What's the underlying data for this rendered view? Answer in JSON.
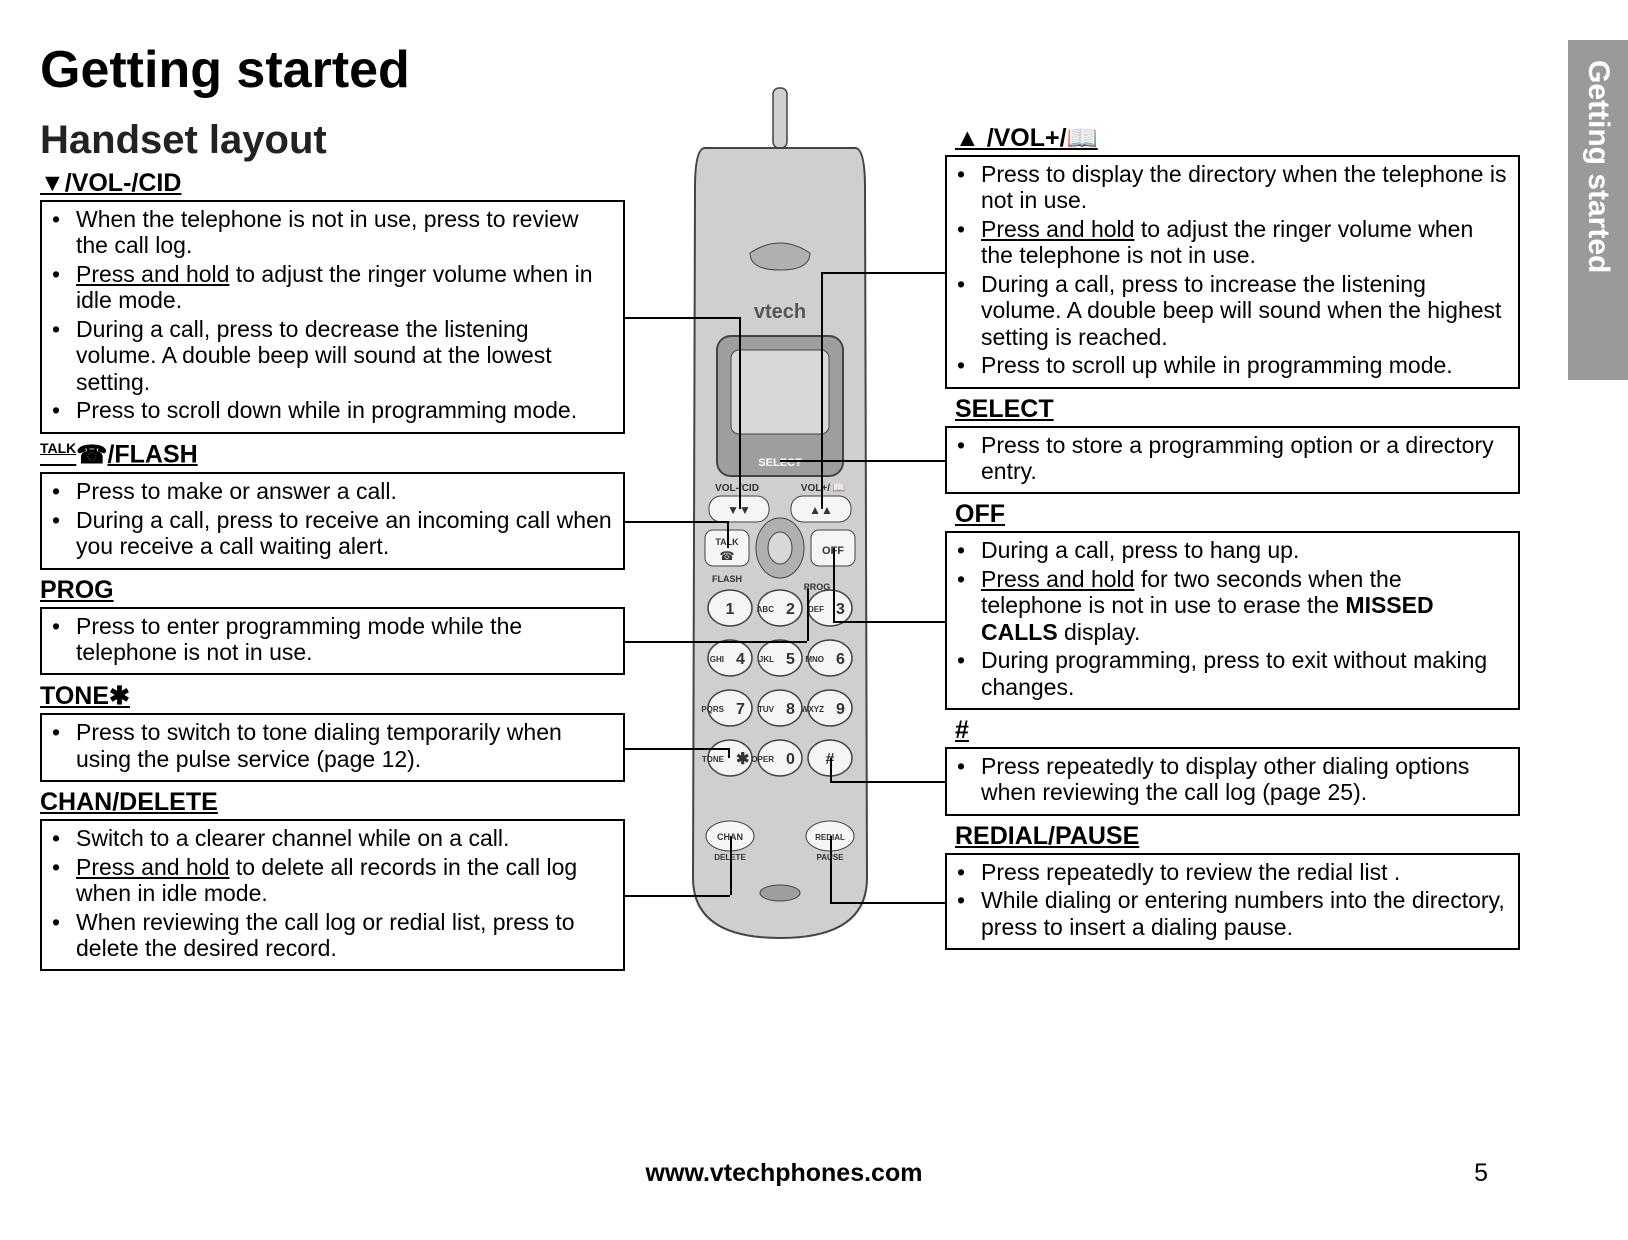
{
  "side_tab": "Getting started",
  "title": "Getting started",
  "subtitle": "Handset layout",
  "footer_url": "www.vtechphones.com",
  "page_number": "5",
  "left": {
    "vol_down": {
      "head": "▼/VOL-/CID",
      "b1": "When the telephone is not in use, press to review the call log.",
      "b2a": "Press and hold",
      "b2b": " to adjust the ringer volume when in idle mode.",
      "b3": "During a call, press to decrease the listening volume. A double beep will sound at the lowest setting.",
      "b4": "Press to scroll down while in programming mode."
    },
    "talk": {
      "head": "/FLASH",
      "head_pre": "TALK",
      "b1": "Press to make or answer a call.",
      "b2": "During a call, press to receive an incoming call when you receive a call waiting alert."
    },
    "prog": {
      "head": "PROG",
      "b1": "Press to enter programming mode while the telephone is not in use."
    },
    "tone": {
      "head": "TONE✱",
      "b1": "Press to switch to tone dialing temporarily when using the pulse service (page 12)."
    },
    "chan": {
      "head": "CHAN/DELETE",
      "b1": "Switch to a clearer channel while on a call.",
      "b2a": "Press and hold",
      "b2b": " to delete all records in the call log when in idle mode.",
      "b3": "When reviewing the call log or redial list, press to delete the desired record."
    }
  },
  "right": {
    "vol_up": {
      "head": "▲ /VOL+/",
      "book": "📖",
      "b1": "Press to display the directory when the telephone is not in use.",
      "b2a": "Press and hold",
      "b2b": " to adjust the ringer volume when the telephone is not in use.",
      "b3": "During a call, press to increase the listening volume. A double beep will sound when the highest setting is reached.",
      "b4": "Press to scroll up while in programming mode."
    },
    "select": {
      "head": "SELECT",
      "b1": "Press to store a programming option or a directory entry."
    },
    "off": {
      "head": "OFF",
      "b1": "During a call, press to hang up.",
      "b2a": "Press and hold",
      "b2b": " for two seconds when the telephone is not in use to erase the ",
      "b2c": "MISSED CALLS",
      "b2d": " display.",
      "b3": "During programming, press to exit without making changes."
    },
    "hash": {
      "head": "#",
      "b1": "Press repeatedly to display other dialing options when reviewing the call log (page 25)."
    },
    "redial": {
      "head": "REDIAL/PAUSE",
      "b1": "Press repeatedly to review the redial list .",
      "b2": "While dialing or entering numbers into the directory, press to insert a dialing pause."
    }
  },
  "phone": {
    "brand": "vtech",
    "select_label": "SELECT",
    "vol_down_label": "VOL-/CID",
    "vol_up_label": "VOL+/",
    "talk_label": "TALK",
    "off_label": "OFF",
    "flash_label": "FLASH",
    "prog_label": "PROG",
    "chan_label": "CHAN",
    "delete_label": "DELETE",
    "redial_label": "REDIAL",
    "pause_label": "PAUSE",
    "keys": [
      {
        "n": "1",
        "l": ""
      },
      {
        "n": "2",
        "l": "ABC"
      },
      {
        "n": "3",
        "l": "DEF"
      },
      {
        "n": "4",
        "l": "GHI"
      },
      {
        "n": "5",
        "l": "JKL"
      },
      {
        "n": "6",
        "l": "MNO"
      },
      {
        "n": "7",
        "l": "PQRS"
      },
      {
        "n": "8",
        "l": "TUV"
      },
      {
        "n": "9",
        "l": "WXYZ"
      },
      {
        "n": "✱",
        "l": "TONE"
      },
      {
        "n": "0",
        "l": "OPER"
      },
      {
        "n": "#",
        "l": ""
      }
    ],
    "colors": {
      "body": "#cfcfcf",
      "body_dark": "#9e9e9e",
      "screen": "#d8d8d8",
      "key": "#f5f5f5",
      "outline": "#444"
    }
  }
}
